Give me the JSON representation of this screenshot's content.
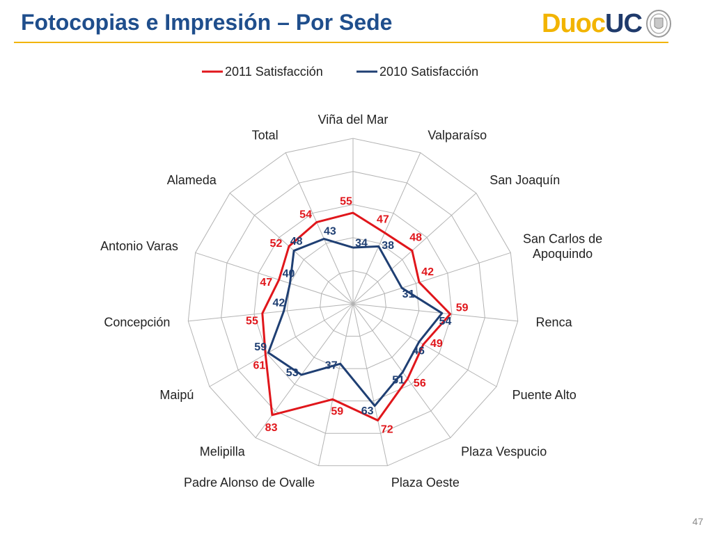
{
  "slide": {
    "title": "Fotocopias e Impresión – Por Sede",
    "logo_text_1": "Duoc",
    "logo_text_2": "UC",
    "page_number": "47"
  },
  "colors": {
    "title": "#1f4e8c",
    "rule": "#f2b400",
    "series_2011": "#e0161b",
    "series_2010": "#1f3f73",
    "grid": "#b3b3b3"
  },
  "chart_data": {
    "type": "radar",
    "title": "",
    "categories": [
      "Viña del Mar",
      "Valparaíso",
      "San Joaquín",
      "San Carlos de Apoquindo",
      "Renca",
      "Puente Alto",
      "Plaza Vespucio",
      "Plaza Oeste",
      "Padre Alonso de Ovalle",
      "Melipilla",
      "Maipú",
      "Concepción",
      "Antonio Varas",
      "Alameda",
      "Total"
    ],
    "series": [
      {
        "name": "2011 Satisfacción",
        "values": [
          55,
          47,
          48,
          42,
          59,
          49,
          56,
          72,
          59,
          83,
          61,
          55,
          47,
          52,
          54
        ]
      },
      {
        "name": "2010 Satisfacción",
        "values": [
          34,
          38,
          null,
          31,
          54,
          46,
          51,
          63,
          37,
          53,
          59,
          42,
          40,
          48,
          43
        ]
      }
    ],
    "rlim": [
      0,
      100
    ],
    "grid_levels": 5,
    "legend_position": "top"
  }
}
